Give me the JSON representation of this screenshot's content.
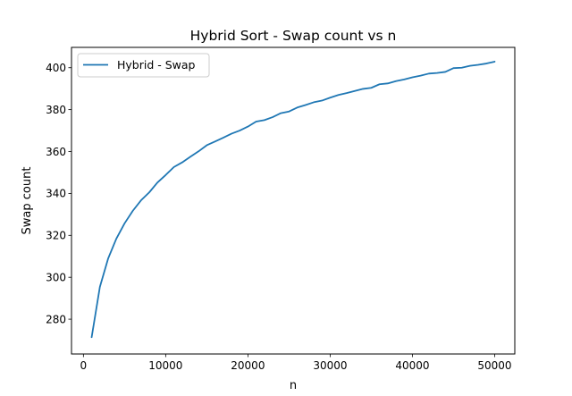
{
  "chart_data": {
    "type": "line",
    "title": "Hybrid Sort - Swap count vs n",
    "xlabel": "n",
    "ylabel": "Swap count",
    "xlim": [
      -1450,
      52450
    ],
    "ylim": [
      263.4,
      409.7
    ],
    "xticks": [
      0,
      10000,
      20000,
      30000,
      40000,
      50000
    ],
    "yticks": [
      280,
      300,
      320,
      340,
      360,
      380,
      400
    ],
    "grid": false,
    "legend_position": "top-left",
    "series": [
      {
        "name": "Hybrid - Swap",
        "color": "#1f77b4",
        "x": [
          1000,
          2000,
          3000,
          4000,
          5000,
          6000,
          7000,
          8000,
          9000,
          10000,
          11000,
          12000,
          13000,
          14000,
          15000,
          16000,
          17000,
          18000,
          19000,
          20000,
          21000,
          22000,
          23000,
          24000,
          25000,
          26000,
          27000,
          28000,
          29000,
          30000,
          31000,
          32000,
          33000,
          34000,
          35000,
          36000,
          37000,
          38000,
          39000,
          40000,
          41000,
          42000,
          43000,
          44000,
          45000,
          46000,
          47000,
          48000,
          49000,
          50000
        ],
        "values": [
          271.4,
          295.4,
          308.9,
          318.4,
          325.7,
          331.7,
          336.7,
          340.5,
          345.2,
          348.8,
          352.6,
          354.8,
          357.5,
          360.1,
          363.0,
          364.8,
          366.6,
          368.5,
          370.0,
          371.9,
          374.3,
          375.0,
          376.4,
          378.3,
          379.1,
          381.0,
          382.2,
          383.5,
          384.3,
          385.7,
          387.0,
          387.9,
          388.9,
          389.9,
          390.4,
          392.1,
          392.5,
          393.6,
          394.4,
          395.4,
          396.2,
          397.2,
          397.5,
          398.0,
          399.8,
          400.0,
          400.9,
          401.4,
          402.0,
          402.9
        ]
      }
    ]
  }
}
